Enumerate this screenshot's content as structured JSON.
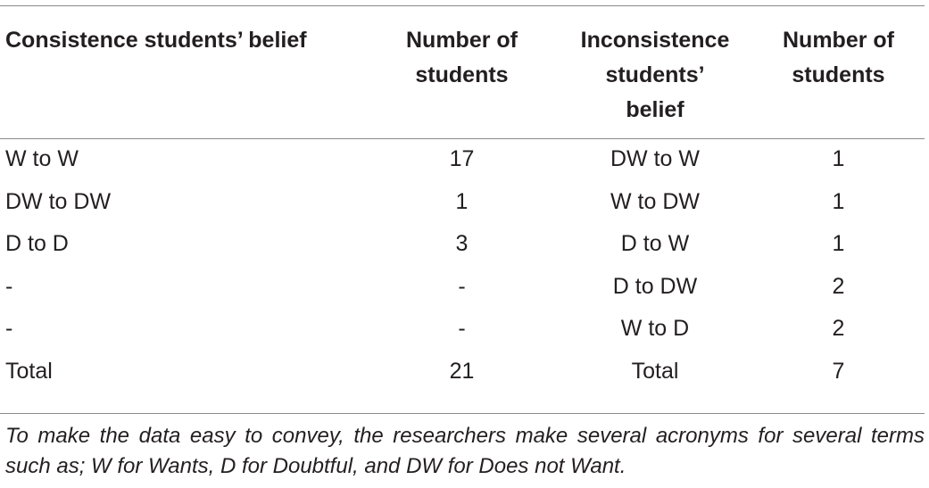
{
  "table": {
    "headers": [
      "Consistence students’ belief",
      "Number of students",
      "Inconsistence students’ belief",
      "Number of students"
    ],
    "header_lines": [
      [
        "Consistence students’ belief"
      ],
      [
        "Number of",
        "students"
      ],
      [
        "Inconsistence",
        "students’",
        "belief"
      ],
      [
        "Number of",
        "students"
      ]
    ],
    "rows": [
      [
        "W to W",
        "17",
        "DW to W",
        "1"
      ],
      [
        "DW to DW",
        "1",
        "W to DW",
        "1"
      ],
      [
        "D to D",
        "3",
        "D to W",
        "1"
      ],
      [
        "-",
        "-",
        "D to DW",
        "2"
      ],
      [
        "-",
        "-",
        "W to D",
        "2"
      ],
      [
        "Total",
        "21",
        "Total",
        "7"
      ]
    ]
  },
  "footnote": {
    "line1": "To make the data easy to convey, the researchers make several acronyms for",
    "line2": "several terms such as; W for Wants, D for Doubtful, and DW for Does not Want."
  }
}
